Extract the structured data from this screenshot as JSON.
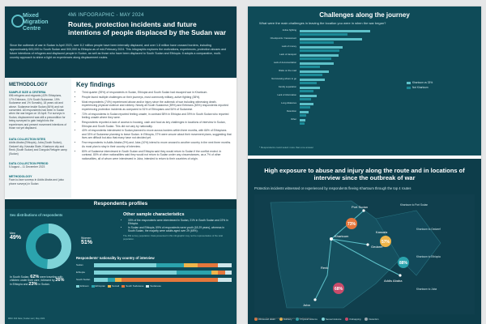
{
  "left": {
    "logo": "Mixed Migration Centre",
    "kicker": "4Mi INFOGRAPHIC - MAY 2024",
    "title": "Routes, protection incidents and future intentions of people displaced by the Sudan war",
    "intro": "Since the outbreak of war in Sudan in April 2023, over 8.2 million people have been internally displaced, and over 1.8 million have crossed borders, including approximately 600,000 to South Sudan and 500,000 to Ethiopia as of mid-February 2024. This infographic explores the motivations, experiences, protection abuses and future intentions of refugees and displaced people in Sudan, as well as those who have been displaced to South Sudan and Ethiopia. It adopts a comparative, multi-country approach to shine a light on experiences along displacement routes.",
    "methodology": {
      "title": "METHODOLOGY",
      "sample_h": "SAMPLE SIZE & CRITERIA",
      "sample": "696 refugees and migrants (43% Ethiopians, 17% Eritreans, 11% South Sudanese, 19% Sudanese and 1% Somalis), 18 years old and above. Sudanese inside Sudan (84%) and not consented. All respondents had been in Sudan when the war began on 15 April. For surveys in Sudan, displacement was still a precondition for being surveyed to gain insight into the experiences and present movement intentions of those not yet displaced.",
      "collection_h": "DATA COLLECTION SITES",
      "collection": "Addis Ababa (Ethiopia), Juba (South Sudan), Gedaref city, Kassala State, Khartoum city and Renk (South Sudan) and Dongola Refugee camp (Sudan)",
      "period_h": "DATA COLLECTION PERIOD",
      "period": "5 August – 11 December 2023",
      "methodology_h": "METHODOLOGY",
      "methodology": "Face-to-face surveys in Addis Ababa and (also phone surveys) in Sudan"
    },
    "key_findings": {
      "title": "Key findings",
      "items": [
        "Third quarter (59%) of respondents in Sudan, Ethiopia and South Sudan had escaped war in Khartoum.",
        "People faced multiple challenges on their journeys, most commonly military, active fighting (38%).",
        "Most respondents (74%) experienced abuse and/or injury since the outbreak of war including witnessing death, experiencing physical violence and robbery. Nearly all South Sudanese (89%) and Eritreans (83%) respondents reported experiencing protection incidents as compared to 51% of Ethiopians and 54% of Sudanese.",
        "72% of respondents in Sudan reported feeling unsafe, in contrast 58% in Ethiopia and 39% in South Sudan who reported feeling unsafe where they were.",
        "Respondents reported a lack of access to housing, cash and food as key challenges in locations of interview in Sudan, Ethiopia and South Sudan. This did not vary by nationality.",
        "40% of respondents interviewed in Sudan planned to move across borders within three months, with 66% of Ethiopians and 33% of Sudanese planning to leave Sudan. In Ethiopia, 37% were unsure about their movement plans, suggesting that lives are difficult but also that many have not decided yet.",
        "Few respondents in Addis Ababa (9%) and Juba (10%) intend to move onward to another country in the next three months. As most plan to stay in their country of interview.",
        "80% of Sudanese interviewed in South Sudan and Ethiopia said they would return to Sudan if the conflict ended. In contrast, 80% of other nationalities said they would not return to Sudan under any circumstances, as a 7% of other nationalities, all of whom were interviewed in Juba, intended to return to their countries of origin."
      ]
    },
    "profiles": {
      "title": "Respondents profiles",
      "sex_title": "Sex distributions of respondents",
      "men_label": "Men",
      "men_pct": "49%",
      "women_label": "Women",
      "women_pct": "51%",
      "other_title": "Other sample characteristics",
      "other_items": [
        "33% of the respondents were interviewed in Sudan, 21% in South Sudan and 22% in Ethiopia.",
        "In Sudan and Ethiopia, 59% of respondents were youth (18-29 years), whereas in South Sudan, the majority were adults aged over 29 (65%)."
      ],
      "note": "The 4Mi survey population. Data presented in this infographic may not be representative of the total population.",
      "pct_text_1": "In South Sudan,",
      "pct_1": "62%",
      "pct_text_2": "were traveling with children under their care, followed by",
      "pct_2": "26%",
      "pct_text_3": "in Ethiopia and",
      "pct_3": "23%",
      "pct_text_4": "in Sudan.",
      "nat_title": "Respondents' nationality by country of interview",
      "nat_rows": [
        {
          "label": "Sudan",
          "seg": [
            45,
            20,
            10,
            15,
            10
          ]
        },
        {
          "label": "Ethiopia",
          "seg": [
            60,
            25,
            5,
            5,
            5
          ]
        },
        {
          "label": "South Sudan",
          "seg": [
            10,
            5,
            5,
            70,
            10
          ]
        }
      ],
      "nat_legend": [
        "Eritrean",
        "Ethiopian",
        "Somali",
        "South Sudanese",
        "Sudanese"
      ],
      "nat_colors": [
        "#7fd3d8",
        "#2ba3ad",
        "#f0b54a",
        "#e4773c",
        "#cfe6ea"
      ],
      "footer": "MMC 4Mi Data | Sudan war | May 2024"
    }
  },
  "right": {
    "challenges": {
      "title": "Challenges along the journey",
      "sub": "What were the main challenges in leaving the location you were in when the war began?",
      "series": [
        {
          "name": "Khartoum vs 33%"
        },
        {
          "name": "Not Khartoum"
        }
      ],
      "rows": [
        {
          "label": "Active fighting",
          "a": 62,
          "b": 42
        },
        {
          "label": "Checkpoints / harassment",
          "a": 55,
          "b": 30
        },
        {
          "label": "Lack of money",
          "a": 38,
          "b": 35
        },
        {
          "label": "Lack of transport",
          "a": 34,
          "b": 28
        },
        {
          "label": "Lack of documentation",
          "a": 30,
          "b": 18
        },
        {
          "label": "Risks on the road",
          "a": 26,
          "b": 20
        },
        {
          "label": "Not knowing where to go",
          "a": 22,
          "b": 15
        },
        {
          "label": "Family separation",
          "a": 18,
          "b": 12
        },
        {
          "label": "Lack of information",
          "a": 15,
          "b": 10
        },
        {
          "label": "Long distances",
          "a": 12,
          "b": 9
        },
        {
          "label": "Detention",
          "a": 8,
          "b": 6
        },
        {
          "label": "Other",
          "a": 5,
          "b": 4
        }
      ],
      "note": "* Respondents could select more than one answer"
    },
    "abuse": {
      "title": "High exposure to abuse and injury along the route and in locations of interview since the outbreak of war",
      "sub": "Protection incidents witnessed or experienced by respondents fleeing Khartoum through the top 4 routes",
      "cities": {
        "port_sudan": "Port Sudan",
        "khartoum": "Khartoum",
        "gedaref": "Gedaref",
        "kassala": "Kassala",
        "addis": "Addis Ababa",
        "juba": "Juba",
        "renk": "Renk"
      },
      "route_labels": [
        "Khartoum to Port Sudan",
        "Khartoum to Gedaref",
        "Khartoum to Ethiopia",
        "Khartoum to Juba"
      ],
      "pct": [
        "73%",
        "57%",
        "88%",
        "68%"
      ],
      "legend": [
        "Witnessed death",
        "Robbery",
        "Physical violence",
        "Sexual violence",
        "Kidnapping",
        "Detention"
      ],
      "legend_colors": [
        "#e4773c",
        "#f0b54a",
        "#2ba3ad",
        "#7fd3d8",
        "#c94b6a",
        "#9aa7ad"
      ]
    },
    "footer": "Disclaimer: The maps in this infographic are purely illustrative"
  }
}
